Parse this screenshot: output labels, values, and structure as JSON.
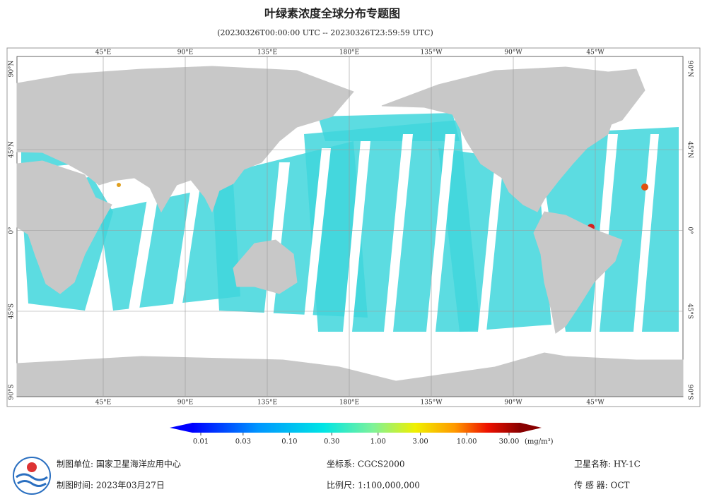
{
  "title": "叶绿素浓度全球分布专题图",
  "subtitle": "(20230326T00:00:00 UTC -- 20230326T23:59:59 UTC)",
  "map": {
    "lon_ticks": [
      {
        "value": 45,
        "label": "45°E"
      },
      {
        "value": 90,
        "label": "90°E"
      },
      {
        "value": 135,
        "label": "135°E"
      },
      {
        "value": 180,
        "label": "180°E"
      },
      {
        "value": 225,
        "label": "135°W"
      },
      {
        "value": 270,
        "label": "90°W"
      },
      {
        "value": 315,
        "label": "45°W"
      }
    ],
    "lat_ticks": [
      {
        "value": 90,
        "label": "90°N"
      },
      {
        "value": 45,
        "label": "45°N"
      },
      {
        "value": 0,
        "label": "0°"
      },
      {
        "value": -45,
        "label": "45°S"
      },
      {
        "value": -90,
        "label": "90°S"
      }
    ]
  },
  "colorbar": {
    "log": true,
    "lim": [
      0.01,
      30
    ],
    "ticks": [
      {
        "value": 0.01,
        "label": "0.01"
      },
      {
        "value": 0.03,
        "label": "0.03"
      },
      {
        "value": 0.1,
        "label": "0.10"
      },
      {
        "value": 0.3,
        "label": "0.30"
      },
      {
        "value": 1,
        "label": "1.00"
      },
      {
        "value": 3,
        "label": "3.00"
      },
      {
        "value": 10,
        "label": "10.00"
      },
      {
        "value": 30,
        "label": "30.00"
      }
    ],
    "unit": "(mg/m³)"
  },
  "footer": {
    "org": "制图单位: 国家卫星海洋应用中心",
    "date": "制图时间: 2023年03月27日",
    "crs": "坐标系: CGCS2000",
    "scale": "比例尺: 1:100,000,000",
    "satellite": "卫星名称: HY-1C",
    "sensor": "传 感 器: OCT"
  }
}
